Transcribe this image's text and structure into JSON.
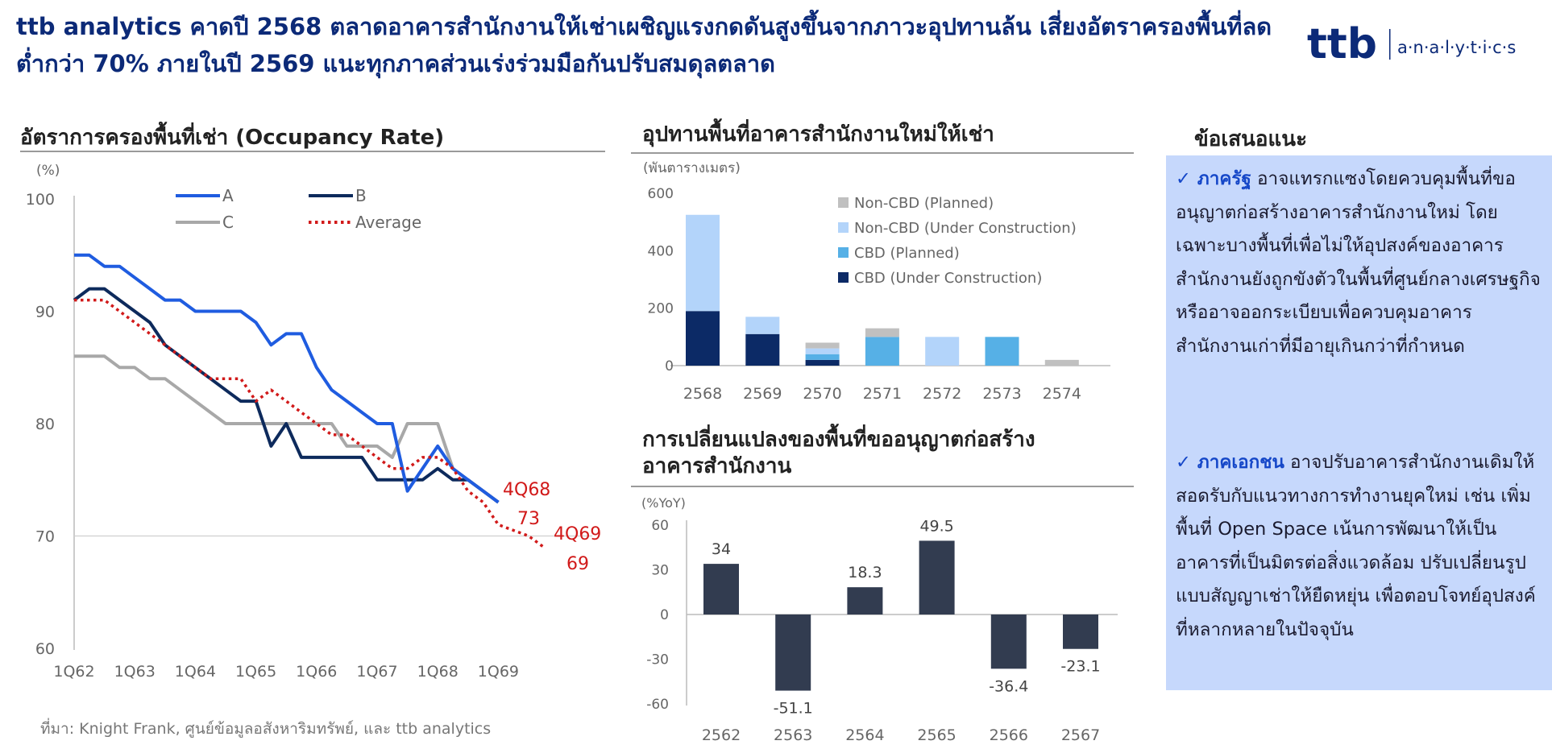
{
  "headline": "ttb analytics คาดปี 2568 ตลาดอาคารสำนักงานให้เช่าเผชิญแรงกดดันสูงขึ้นจากภาวะอุปทานล้น เสี่ยงอัตราครองพื้นที่ลดต่ำกว่า 70% ภายในปี 2569 แนะทุกภาคส่วนเร่งร่วมมือกันปรับสมดุลตลาด",
  "logo": {
    "brand": "ttb",
    "sub": "a·n·a·l·y·t·i·c·s"
  },
  "colors": {
    "navy": "#0c2a78",
    "blue": "#1f5ce0",
    "dark_navy": "#0d2a5c",
    "gray": "#a8a8a8",
    "red": "#d11a1a",
    "bar_dark": "#323c50",
    "panel": "#c6d8fc"
  },
  "occupancy": {
    "title": "อัตราการครองพื้นที่เช่า (Occupancy Rate)",
    "unit": "(%)",
    "annot_4q68": "4Q68",
    "annot_4q68_val": "73",
    "annot_4q69": "4Q69",
    "annot_4q69_val": "69"
  },
  "supply": {
    "title": "อุปทานพื้นที่อาคารสำนักงานใหม่ให้เช่า",
    "unit": "(พันตารางเมตร)"
  },
  "permits": {
    "title_line1": "การเปลี่ยนแปลงของพื้นที่ขออนุญาตก่อสร้าง",
    "title_line2": "อาคารสำนักงาน",
    "unit": "(%YoY)"
  },
  "recommendations": {
    "title": "ข้อเสนอแนะ",
    "items": [
      {
        "head": "ภาครัฐ",
        "text": " อาจแทรกแซงโดยควบคุมพื้นที่ขออนุญาตก่อสร้างอาคารสำนักงานใหม่ โดยเฉพาะบางพื้นที่เพื่อไม่ให้อุปสงค์ของอาคารสำนักงานยังถูกขังตัวในพื้นที่ศูนย์กลางเศรษฐกิจ หรืออาจออกระเบียบเพื่อควบคุมอาคารสำนักงานเก่าที่มีอายุเกินกว่าที่กำหนด"
      },
      {
        "head": "ภาคเอกชน",
        "text": " อาจปรับอาคารสำนักงานเดิมให้สอดรับกับแนวทางการทำงานยุคใหม่ เช่น เพิ่มพื้นที่ Open Space  เน้นการพัฒนาให้เป็นอาคารที่เป็นมิตรต่อสิ่งแวดล้อม ปรับเปลี่ยนรูปแบบสัญญาเช่าให้ยืดหยุ่น เพื่อตอบโจทย์อุปสงค์ที่หลากหลายในปัจจุบัน"
      }
    ]
  },
  "source": "ที่มา: Knight Frank, ศูนย์ข้อมูลอสังหาริมทรัพย์, และ ttb analytics",
  "chart_data": [
    {
      "type": "line",
      "title": "อัตราการครองพื้นที่เช่า (Occupancy Rate)",
      "ylabel": "(%)",
      "ylim": [
        60,
        100
      ],
      "yticks": [
        60,
        70,
        80,
        90,
        100
      ],
      "xticks": [
        "1Q62",
        "1Q63",
        "1Q64",
        "1Q65",
        "1Q66",
        "1Q67",
        "1Q68",
        "1Q69"
      ],
      "x_start": "1Q62",
      "grid": "horizontal at 70 only",
      "legend_position": "top",
      "series": [
        {
          "name": "A",
          "color": "#1f5ce0",
          "style": "solid",
          "values": [
            95,
            95,
            94,
            94,
            93,
            92,
            91,
            91,
            90,
            90,
            90,
            90,
            89,
            87,
            88,
            88,
            85,
            83,
            82,
            81,
            80,
            80,
            74,
            76,
            78,
            76,
            75,
            74,
            73
          ]
        },
        {
          "name": "B",
          "color": "#0d2a5c",
          "style": "solid",
          "values": [
            91,
            92,
            92,
            91,
            90,
            89,
            87,
            86,
            85,
            84,
            83,
            82,
            82,
            78,
            80,
            77,
            77,
            77,
            77,
            77,
            75,
            75,
            75,
            75,
            76,
            75,
            75,
            74,
            73
          ]
        },
        {
          "name": "C",
          "color": "#a8a8a8",
          "style": "solid",
          "values": [
            86,
            86,
            86,
            85,
            85,
            84,
            84,
            83,
            82,
            81,
            80,
            80,
            80,
            80,
            80,
            80,
            80,
            80,
            78,
            78,
            78,
            77,
            80,
            80,
            80,
            76,
            75,
            74,
            73
          ]
        },
        {
          "name": "Average",
          "color": "#d11a1a",
          "style": "dotted",
          "values": [
            91,
            91,
            91,
            90,
            89,
            88,
            87,
            86,
            85,
            84,
            84,
            84,
            82,
            83,
            82,
            81,
            80,
            79,
            79,
            78,
            77,
            76,
            76,
            77,
            77,
            76,
            74,
            73,
            71,
            70.5,
            70,
            69
          ]
        }
      ],
      "annotations": [
        {
          "label": "4Q68",
          "value": 73
        },
        {
          "label": "4Q69",
          "value": 69
        }
      ]
    },
    {
      "type": "bar",
      "stacked": true,
      "title": "อุปทานพื้นที่อาคารสำนักงานใหม่ให้เช่า",
      "ylabel": "(พันตารางเมตร)",
      "ylim": [
        0,
        600
      ],
      "yticks": [
        0,
        200,
        400,
        600
      ],
      "categories": [
        "2568",
        "2569",
        "2570",
        "2571",
        "2572",
        "2573",
        "2574"
      ],
      "legend_position": "top-right",
      "series": [
        {
          "name": "CBD (Under Construction)",
          "color": "#0c2a66",
          "values": [
            190,
            110,
            20,
            0,
            0,
            0,
            0
          ]
        },
        {
          "name": "CBD (Planned)",
          "color": "#56b0e6",
          "values": [
            0,
            0,
            20,
            100,
            0,
            100,
            0
          ]
        },
        {
          "name": "Non-CBD (Under Construction)",
          "color": "#b3d4fa",
          "values": [
            335,
            60,
            20,
            0,
            100,
            0,
            0
          ]
        },
        {
          "name": "Non-CBD (Planned)",
          "color": "#c0c0c0",
          "values": [
            0,
            0,
            20,
            30,
            0,
            0,
            20
          ]
        }
      ],
      "legend_order": [
        "Non-CBD (Planned)",
        "Non-CBD (Under Construction)",
        "CBD (Planned)",
        "CBD (Under Construction)"
      ]
    },
    {
      "type": "bar",
      "title": "การเปลี่ยนแปลงของพื้นที่ขออนุญาตก่อสร้างอาคารสำนักงาน",
      "ylabel": "(%YoY)",
      "ylim": [
        -60,
        60
      ],
      "yticks": [
        -60,
        -30,
        0,
        30,
        60
      ],
      "categories": [
        "2562",
        "2563",
        "2564",
        "2565",
        "2566",
        "2567"
      ],
      "values": [
        34,
        -51.1,
        18.3,
        49.5,
        -36.4,
        -23.1
      ],
      "data_labels": [
        "34",
        "-51.1",
        "18.3",
        "49.5",
        "-36.4",
        "-23.1"
      ],
      "color": "#323c50"
    }
  ]
}
